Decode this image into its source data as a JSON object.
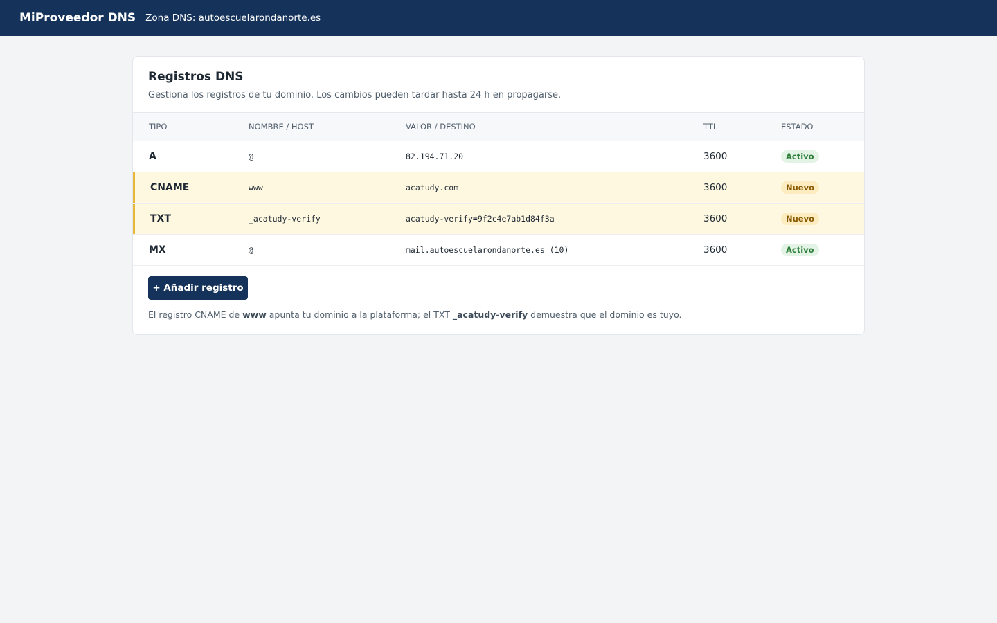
{
  "header": {
    "brand": "MiProveedor DNS",
    "zone": "Zona DNS: autoescuelarondanorte.es"
  },
  "card": {
    "title": "Registros DNS",
    "subtitle": "Gestiona los registros de tu dominio. Los cambios pueden tardar hasta 24 h en propagarse."
  },
  "table": {
    "columns": [
      "TIPO",
      "NOMBRE / HOST",
      "VALOR / DESTINO",
      "TTL",
      "ESTADO"
    ],
    "rows": [
      {
        "cells": [
          "A",
          "@",
          "82.194.71.20",
          3600,
          "Activo"
        ],
        "highlighted": false,
        "status_color": "#2e7d3a",
        "status_bg": "#e3f4e6"
      },
      {
        "cells": [
          "CNAME",
          "www",
          "acatudy.com",
          3600,
          "Nuevo"
        ],
        "highlighted": true,
        "status_color": "#8a5a00",
        "status_bg": "#fcecbf"
      },
      {
        "cells": [
          "TXT",
          "_acatudy-verify",
          "acatudy-verify=9f2c4e7ab1d84f3a",
          3600,
          "Nuevo"
        ],
        "highlighted": true,
        "status_color": "#8a5a00",
        "status_bg": "#fcecbf"
      },
      {
        "cells": [
          "MX",
          "@",
          "mail.autoescuelarondanorte.es (10)",
          3600,
          "Activo"
        ],
        "highlighted": false,
        "status_color": "#2e7d3a",
        "status_bg": "#e3f4e6"
      }
    ]
  },
  "button": "+ Añadir registro",
  "note": [
    {
      "text": "El registro CNAME de ",
      "bold": false
    },
    {
      "text": "www",
      "bold": true
    },
    {
      "text": " apunta tu dominio a la plataforma; el TXT ",
      "bold": false
    },
    {
      "text": "_acatudy-verify",
      "bold": true
    },
    {
      "text": " demuestra que el dominio es tuyo.",
      "bold": false
    }
  ]
}
